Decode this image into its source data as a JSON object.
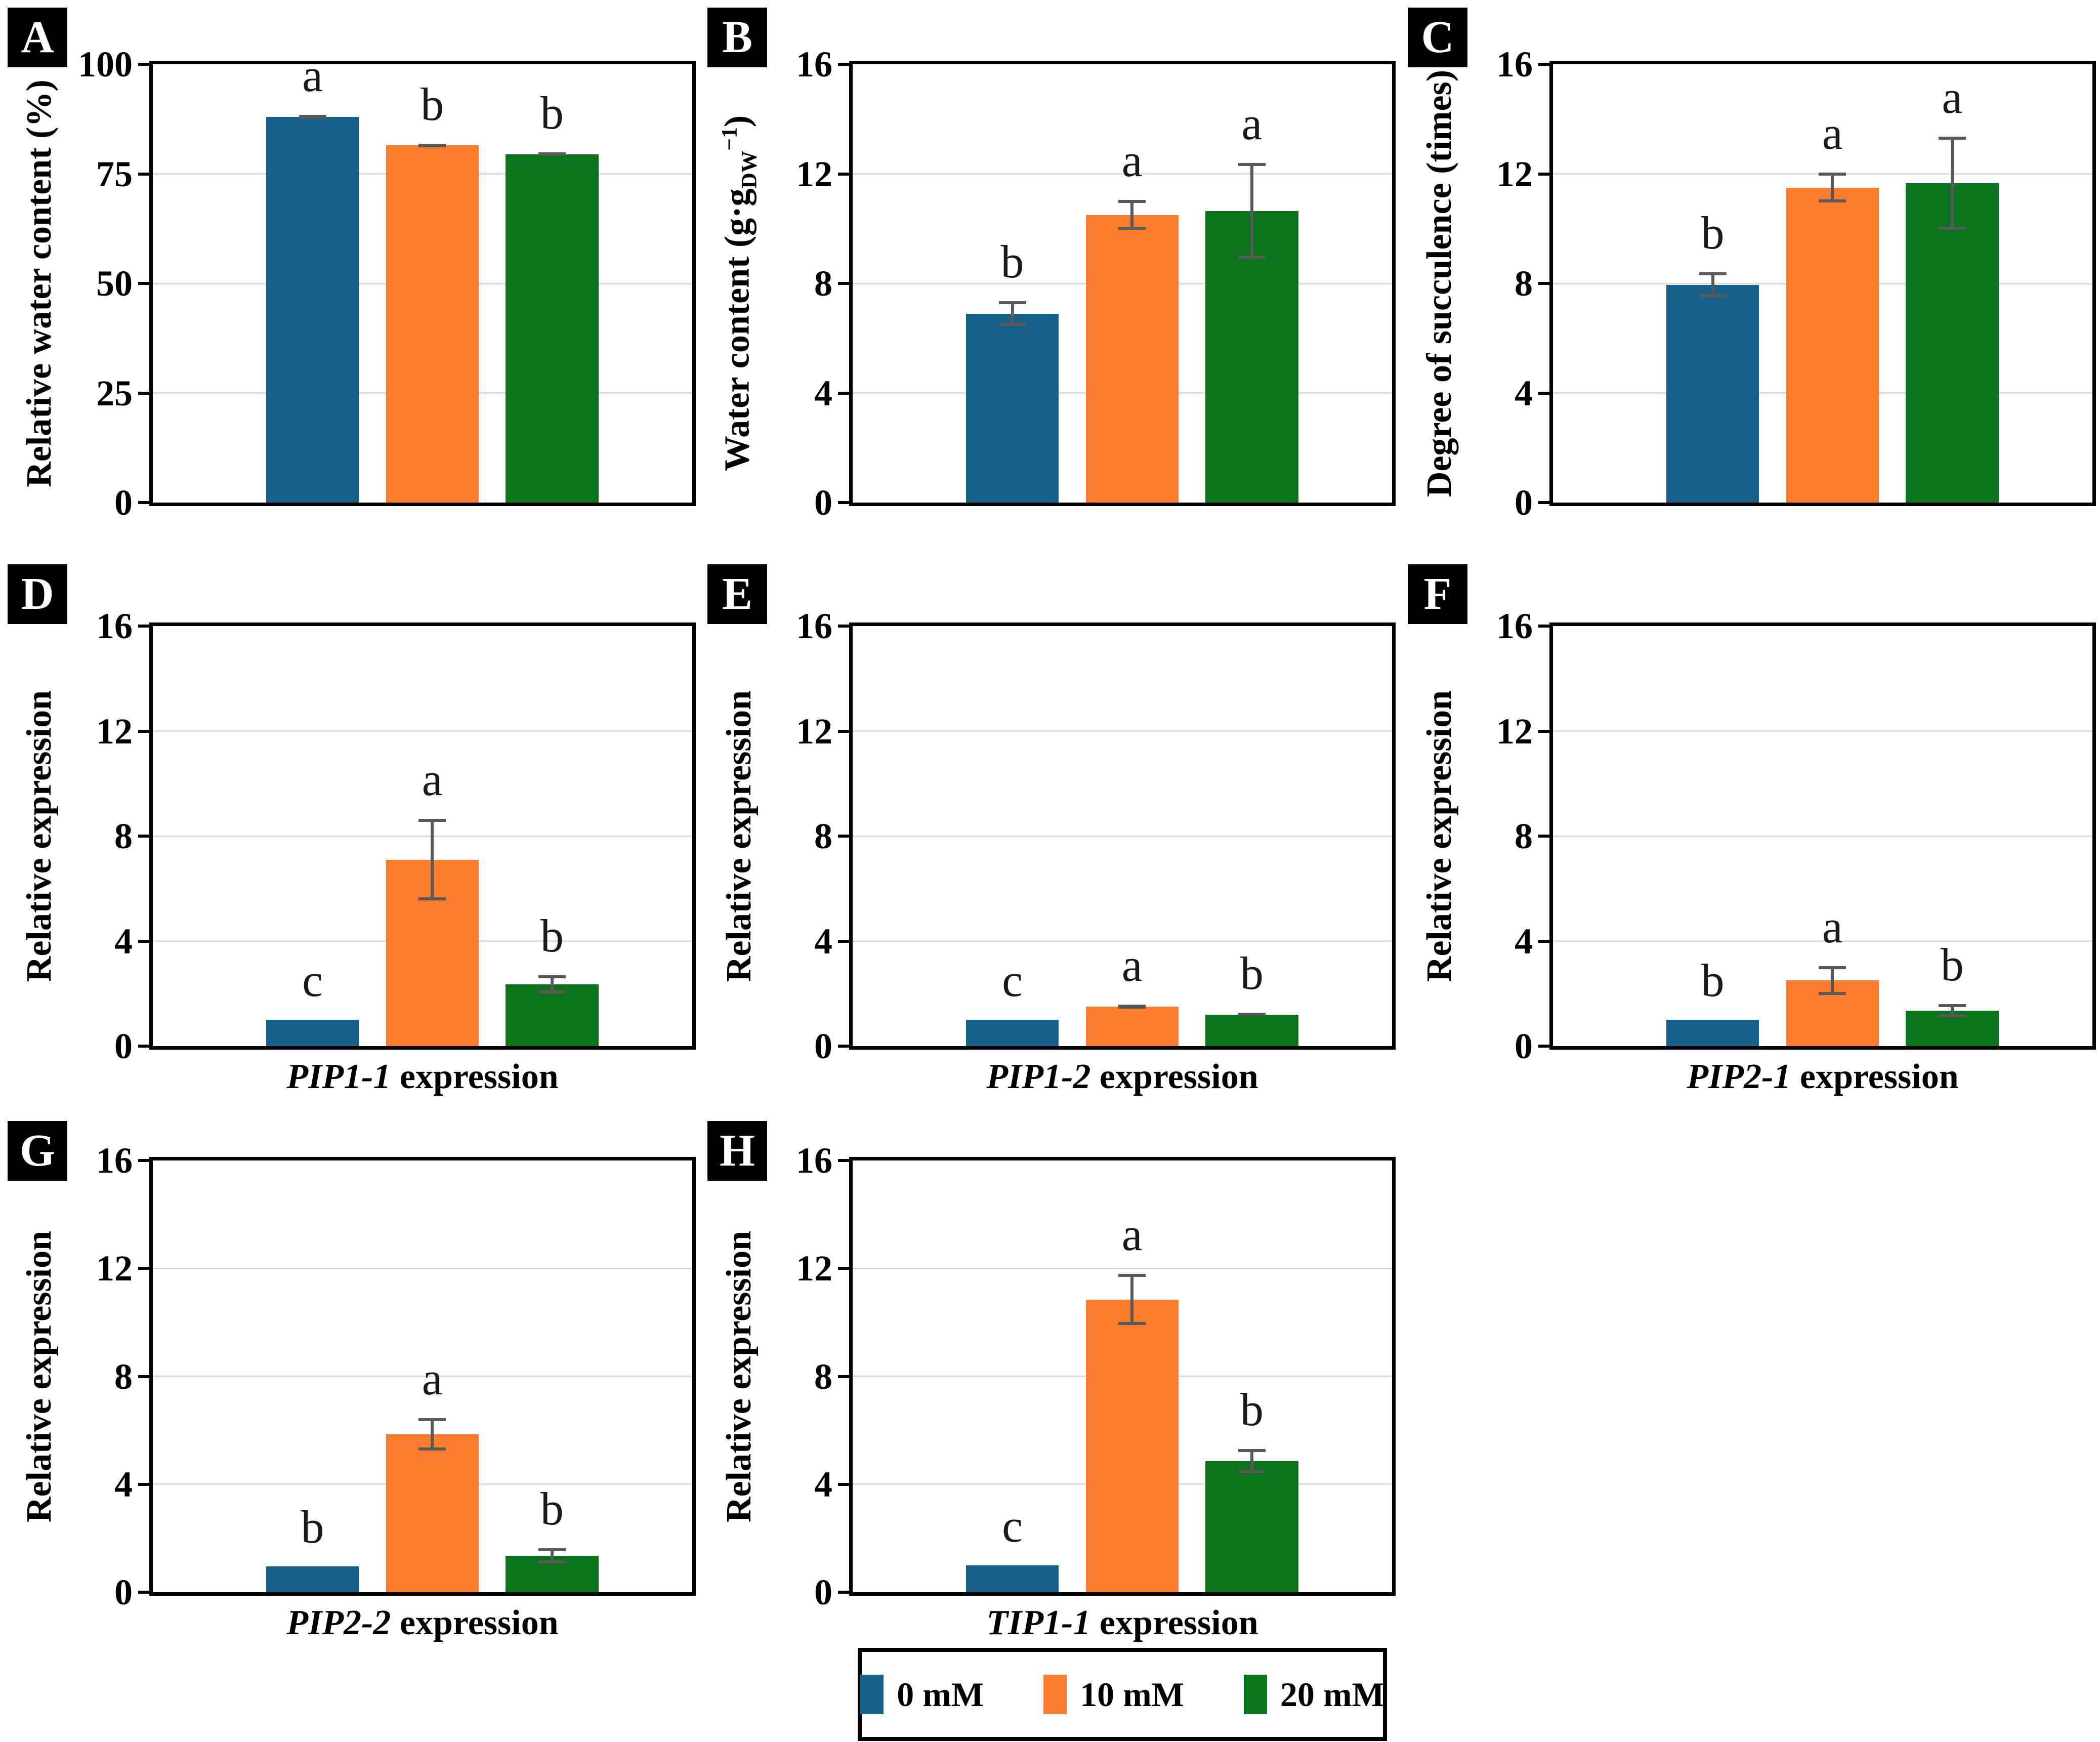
{
  "palette": {
    "series_colors": [
      "#15618A",
      "#FB7C2F",
      "#0B731C"
    ],
    "error_bar": "#595959",
    "gridline": "#DCDCDC",
    "frame": "#000000",
    "panel_label_bg": "#000000",
    "panel_label_fg": "#FFFFFF"
  },
  "legend": {
    "labels": [
      "0 mM",
      "10 mM",
      "20 mM"
    ]
  },
  "chart_data": [
    {
      "panel": "A",
      "type": "bar",
      "ylabel": [
        {
          "text": "Relative water content (%)"
        }
      ],
      "xlabel": null,
      "ylim": [
        0,
        100
      ],
      "yticks": [
        0,
        25,
        50,
        75,
        100
      ],
      "categories": [
        "0 mM",
        "10 mM",
        "20 mM"
      ],
      "values": [
        88,
        81.5,
        79.5
      ],
      "errors": [
        0.5,
        0.4,
        0.4
      ],
      "letters": [
        "a",
        "b",
        "b"
      ]
    },
    {
      "panel": "B",
      "type": "bar",
      "ylabel": [
        {
          "text": "Water content (g·g"
        },
        {
          "text": "DW",
          "style": "sub"
        },
        {
          "text": "−1",
          "style": "sup"
        },
        {
          "text": ")"
        }
      ],
      "xlabel": null,
      "ylim": [
        0,
        16
      ],
      "yticks": [
        0,
        4,
        8,
        12,
        16
      ],
      "categories": [
        "0 mM",
        "10 mM",
        "20 mM"
      ],
      "values": [
        6.9,
        10.5,
        10.65
      ],
      "errors": [
        0.45,
        0.55,
        1.75
      ],
      "letters": [
        "b",
        "a",
        "a"
      ]
    },
    {
      "panel": "C",
      "type": "bar",
      "ylabel": [
        {
          "text": "Degree of succulence (times)"
        }
      ],
      "xlabel": null,
      "ylim": [
        0,
        16
      ],
      "yticks": [
        0,
        4,
        8,
        12,
        16
      ],
      "categories": [
        "0 mM",
        "10 mM",
        "20 mM"
      ],
      "values": [
        7.95,
        11.5,
        11.65
      ],
      "errors": [
        0.45,
        0.55,
        1.7
      ],
      "letters": [
        "b",
        "a",
        "a"
      ]
    },
    {
      "panel": "D",
      "type": "bar",
      "ylabel": [
        {
          "text": "Relative expression"
        }
      ],
      "xlabel": [
        {
          "text": "PIP1-1",
          "style": "italic"
        },
        {
          "text": " expression"
        }
      ],
      "ylim": [
        0,
        16
      ],
      "yticks": [
        0,
        4,
        8,
        12,
        16
      ],
      "categories": [
        "0 mM",
        "10 mM",
        "20 mM"
      ],
      "values": [
        1.0,
        7.1,
        2.35
      ],
      "errors": [
        0,
        1.55,
        0.35
      ],
      "letters": [
        "c",
        "a",
        "b"
      ]
    },
    {
      "panel": "E",
      "type": "bar",
      "ylabel": [
        {
          "text": "Relative expression"
        }
      ],
      "xlabel": [
        {
          "text": "PIP1-2",
          "style": "italic"
        },
        {
          "text": " expression"
        }
      ],
      "ylim": [
        0,
        16
      ],
      "yticks": [
        0,
        4,
        8,
        12,
        16
      ],
      "categories": [
        "0 mM",
        "10 mM",
        "20 mM"
      ],
      "values": [
        1.0,
        1.5,
        1.2
      ],
      "errors": [
        0,
        0.08,
        0.07
      ],
      "letters": [
        "c",
        "a",
        "b"
      ]
    },
    {
      "panel": "F",
      "type": "bar",
      "ylabel": [
        {
          "text": "Relative expression"
        }
      ],
      "xlabel": [
        {
          "text": "PIP2-1",
          "style": "italic"
        },
        {
          "text": " expression"
        }
      ],
      "ylim": [
        0,
        16
      ],
      "yticks": [
        0,
        4,
        8,
        12,
        16
      ],
      "categories": [
        "0 mM",
        "10 mM",
        "20 mM"
      ],
      "values": [
        1.0,
        2.5,
        1.35
      ],
      "errors": [
        0,
        0.55,
        0.25
      ],
      "letters": [
        "b",
        "a",
        "b"
      ]
    },
    {
      "panel": "G",
      "type": "bar",
      "ylabel": [
        {
          "text": "Relative expression"
        }
      ],
      "xlabel": [
        {
          "text": "PIP2-2",
          "style": "italic"
        },
        {
          "text": " expression"
        }
      ],
      "ylim": [
        0,
        16
      ],
      "yticks": [
        0,
        4,
        8,
        12,
        16
      ],
      "categories": [
        "0 mM",
        "10 mM",
        "20 mM"
      ],
      "values": [
        0.95,
        5.85,
        1.35
      ],
      "errors": [
        0,
        0.6,
        0.28
      ],
      "letters": [
        "b",
        "a",
        "b"
      ]
    },
    {
      "panel": "H",
      "type": "bar",
      "ylabel": [
        {
          "text": "Relative expression"
        }
      ],
      "xlabel": [
        {
          "text": "TIP1-1",
          "style": "italic"
        },
        {
          "text": " expression"
        }
      ],
      "ylim": [
        0,
        16
      ],
      "yticks": [
        0,
        4,
        8,
        12,
        16
      ],
      "categories": [
        "0 mM",
        "10 mM",
        "20 mM"
      ],
      "values": [
        1.0,
        10.85,
        4.85
      ],
      "errors": [
        0,
        0.95,
        0.45
      ],
      "letters": [
        "c",
        "a",
        "b"
      ]
    }
  ]
}
